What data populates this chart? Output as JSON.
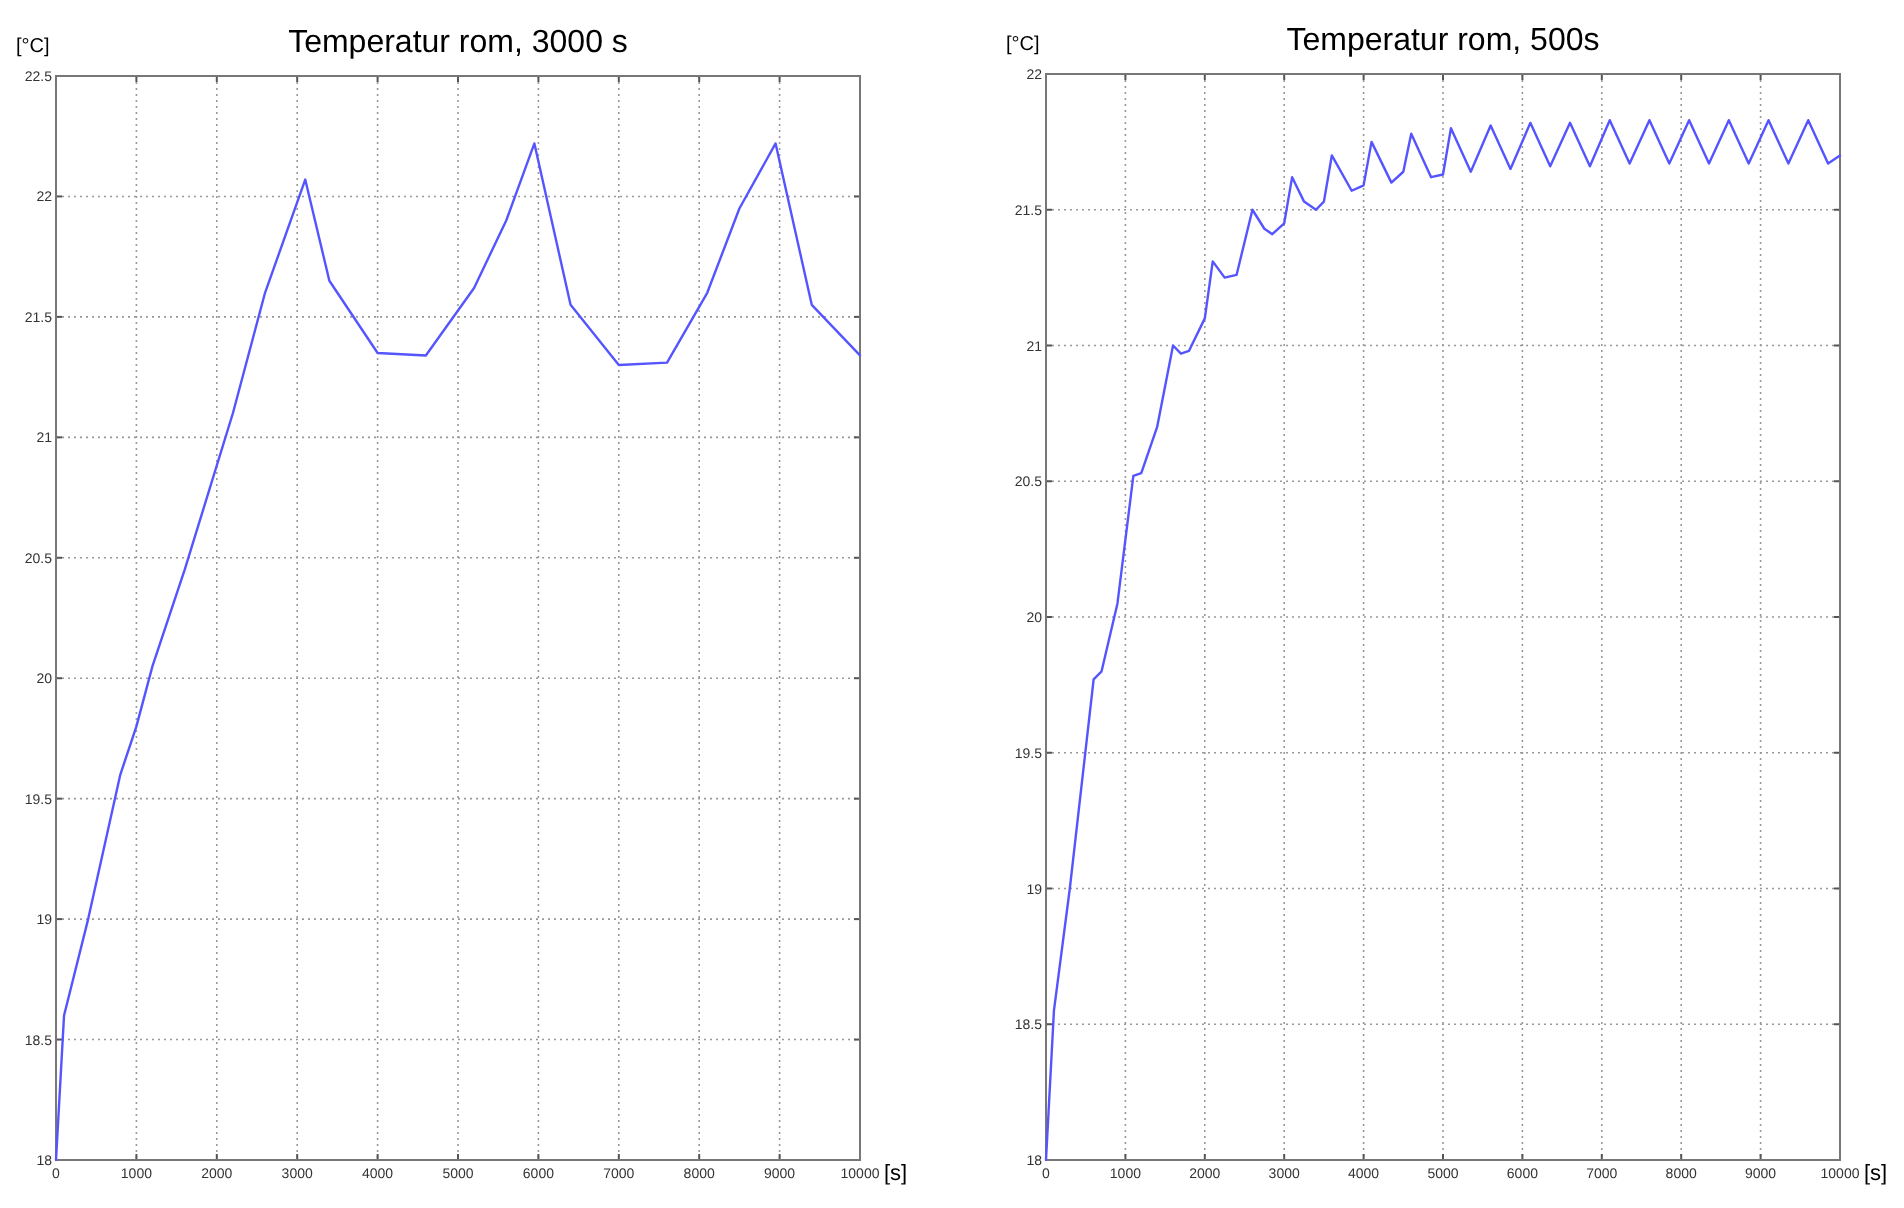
{
  "chart_data": [
    {
      "type": "line",
      "title": "Temperatur rom, 3000 s",
      "ylabel": "[°C]",
      "xlabel": "[s]",
      "xlim": [
        0,
        10000
      ],
      "ylim": [
        18,
        22.5
      ],
      "xticks": [
        0,
        1000,
        2000,
        3000,
        4000,
        5000,
        6000,
        7000,
        8000,
        9000,
        10000
      ],
      "yticks": [
        18,
        18.5,
        19,
        19.5,
        20,
        20.5,
        21,
        21.5,
        22,
        22.5
      ],
      "grid": true,
      "marker": "none",
      "line_style": "solid",
      "series": [
        {
          "color": "#5555ff",
          "x": [
            0,
            100,
            400,
            800,
            1000,
            1200,
            1600,
            2200,
            2600,
            3100,
            3400,
            4000,
            4600,
            5200,
            5600,
            5950,
            6400,
            7000,
            7600,
            8100,
            8500,
            8950,
            9400,
            10000
          ],
          "values": [
            18,
            18.6,
            19.0,
            19.6,
            19.8,
            20.05,
            20.45,
            21.1,
            21.6,
            22.07,
            21.65,
            21.35,
            21.34,
            21.62,
            21.9,
            22.22,
            21.55,
            21.3,
            21.31,
            21.6,
            21.95,
            22.22,
            21.55,
            21.34
          ]
        }
      ]
    },
    {
      "type": "line",
      "title": "Temperatur rom, 500s",
      "ylabel": "[°C]",
      "xlabel": "[s]",
      "xlim": [
        0,
        10000
      ],
      "ylim": [
        18,
        22
      ],
      "xticks": [
        0,
        1000,
        2000,
        3000,
        4000,
        5000,
        6000,
        7000,
        8000,
        9000,
        10000
      ],
      "yticks": [
        18,
        18.5,
        19,
        19.5,
        20,
        20.5,
        21,
        21.5,
        22
      ],
      "grid": true,
      "marker": "none",
      "line_style": "solid",
      "series": [
        {
          "color": "#5555ff",
          "x": [
            0,
            100,
            300,
            600,
            700,
            900,
            1100,
            1200,
            1400,
            1600,
            1700,
            1800,
            2000,
            2100,
            2250,
            2400,
            2600,
            2750,
            2850,
            3000,
            3100,
            3250,
            3400,
            3500,
            3600,
            3850,
            4000,
            4100,
            4350,
            4500,
            4600,
            4850,
            5000,
            5100,
            5350,
            5600,
            5850,
            6100,
            6350,
            6600,
            6850,
            7100,
            7350,
            7600,
            7850,
            8100,
            8350,
            8600,
            8850,
            9100,
            9350,
            9600,
            9850,
            10000
          ],
          "values": [
            18,
            18.55,
            19.0,
            19.77,
            19.8,
            20.05,
            20.52,
            20.53,
            20.7,
            21.0,
            20.97,
            20.98,
            21.1,
            21.31,
            21.25,
            21.26,
            21.5,
            21.43,
            21.41,
            21.45,
            21.62,
            21.53,
            21.5,
            21.53,
            21.7,
            21.57,
            21.59,
            21.75,
            21.6,
            21.64,
            21.78,
            21.62,
            21.63,
            21.8,
            21.64,
            21.81,
            21.65,
            21.82,
            21.66,
            21.82,
            21.66,
            21.83,
            21.67,
            21.83,
            21.67,
            21.83,
            21.67,
            21.83,
            21.67,
            21.83,
            21.67,
            21.83,
            21.67,
            21.7
          ]
        }
      ]
    }
  ]
}
